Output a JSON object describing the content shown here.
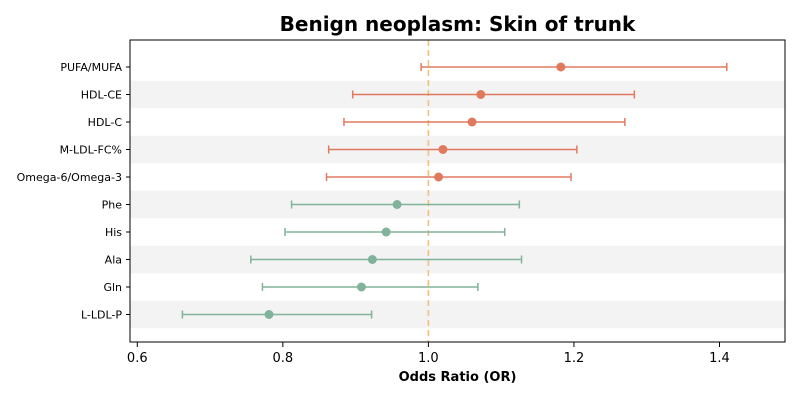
{
  "chart_data": {
    "type": "forest",
    "title": "Benign neoplasm: Skin of trunk",
    "xlabel": "Odds Ratio (OR)",
    "ylabel": "",
    "xlim": [
      0.59,
      1.49
    ],
    "xticks": [
      "0.6",
      "0.8",
      "1.0",
      "1.2",
      "1.4"
    ],
    "reference_line": 1.0,
    "grid": false,
    "row_banding": true,
    "colors": {
      "positive": "#e07a5f",
      "negative": "#81b29a",
      "reference": "#f2c078",
      "band": "#f3f3f3"
    },
    "rows": [
      {
        "label": "PUFA/MUFA",
        "or": 1.182,
        "lower": 0.99,
        "upper": 1.41,
        "direction": "positive"
      },
      {
        "label": "HDL-CE",
        "or": 1.072,
        "lower": 0.896,
        "upper": 1.283,
        "direction": "positive"
      },
      {
        "label": "HDL-C",
        "or": 1.06,
        "lower": 0.884,
        "upper": 1.27,
        "direction": "positive"
      },
      {
        "label": "M-LDL-FC%",
        "or": 1.02,
        "lower": 0.863,
        "upper": 1.204,
        "direction": "positive"
      },
      {
        "label": "Omega-6/Omega-3",
        "or": 1.014,
        "lower": 0.86,
        "upper": 1.196,
        "direction": "positive"
      },
      {
        "label": "Phe",
        "or": 0.957,
        "lower": 0.812,
        "upper": 1.125,
        "direction": "negative"
      },
      {
        "label": "His",
        "or": 0.942,
        "lower": 0.803,
        "upper": 1.105,
        "direction": "negative"
      },
      {
        "label": "Ala",
        "or": 0.923,
        "lower": 0.756,
        "upper": 1.128,
        "direction": "negative"
      },
      {
        "label": "Gln",
        "or": 0.908,
        "lower": 0.772,
        "upper": 1.068,
        "direction": "negative"
      },
      {
        "label": "L-LDL-P",
        "or": 0.781,
        "lower": 0.662,
        "upper": 0.922,
        "direction": "negative"
      }
    ]
  }
}
